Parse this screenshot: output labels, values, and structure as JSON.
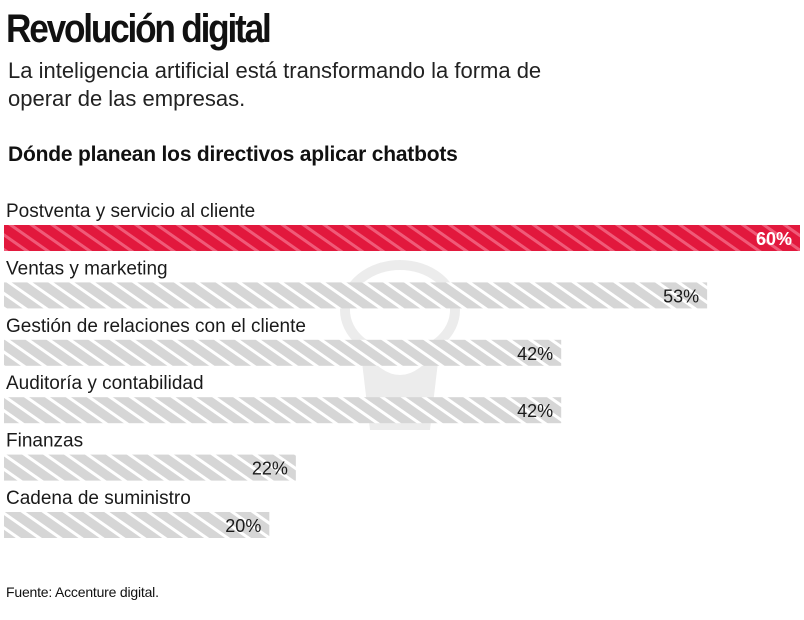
{
  "header": {
    "title": "Revolución digital",
    "subtitle": "La inteligencia artificial está transformando la forma de operar de las empresas.",
    "chart_heading": "Dónde planean los directivos  aplicar chatbots"
  },
  "footer": {
    "source": "Fuente: Accenture digital."
  },
  "colors": {
    "highlight": "#e2183d",
    "bar": "#d6d6d6",
    "stripe_highlight": "#f05a78",
    "stripe_bar": "#ffffff"
  },
  "chart_data": {
    "type": "bar",
    "orientation": "horizontal",
    "title": "Dónde planean los directivos  aplicar chatbots",
    "categories": [
      "Postventa y servicio al cliente",
      "Ventas y marketing",
      "Gestión de relaciones con el cliente",
      "Auditoría y contabilidad",
      "Finanzas",
      "Cadena de suministro"
    ],
    "values": [
      60,
      53,
      42,
      42,
      22,
      20
    ],
    "value_labels": [
      "60%",
      "53%",
      "42%",
      "42%",
      "22%",
      "20%"
    ],
    "unit": "%",
    "highlight_index": 0,
    "xlim": [
      0,
      60
    ],
    "grid": false,
    "legend": "none"
  }
}
